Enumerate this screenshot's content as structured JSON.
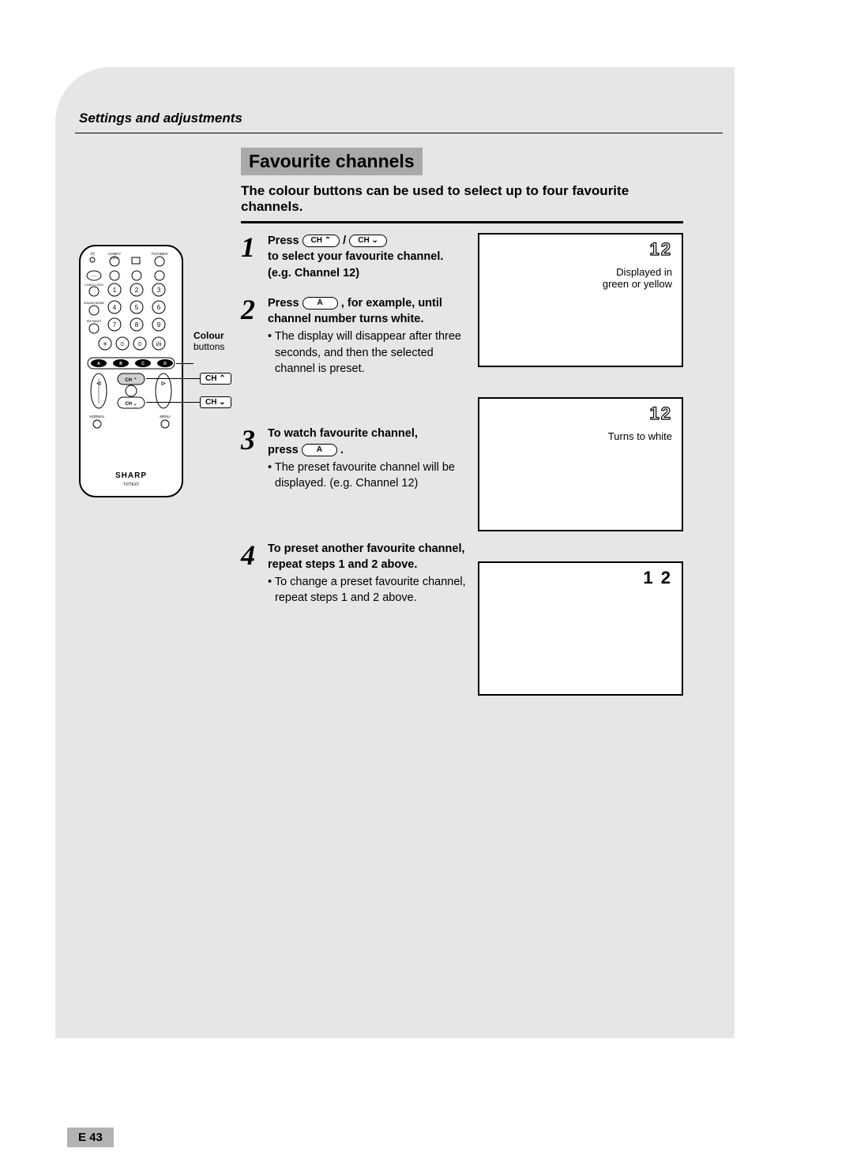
{
  "section_header": "Settings and adjustments",
  "title": "Favourite channels",
  "intro": "The colour buttons can be used to select up to four favourite channels.",
  "buttons": {
    "ch_up": "CH ⌃",
    "ch_down": "CH ⌄",
    "a_button": "A"
  },
  "remote": {
    "colour_label_bold": "Colour",
    "colour_label": "buttons",
    "ch_up_callout": "CH ⌃",
    "ch_down_callout": "CH ⌄",
    "brand": "SHARP",
    "subbrand": "TV/TEXT",
    "top_labels": {
      "comfy": "COMFY",
      "view": "VIEW",
      "tvvideo": "TV/VIDEO"
    },
    "small_labels": {
      "childlock": "CHILD LOCK",
      "soundmode": "SOUND MODE",
      "fmradio": "FM RADIO",
      "normal": "NORMAL",
      "menu": "MENU"
    },
    "keypad": [
      "1",
      "2",
      "3",
      "4",
      "5",
      "6",
      "7",
      "8",
      "9",
      "0"
    ],
    "abcd": [
      "A",
      "B",
      "C",
      "D"
    ],
    "ch_labels": {
      "up": "CH",
      "down": "CH"
    }
  },
  "steps": [
    {
      "num": "1",
      "lines": [
        {
          "type": "bold-inline",
          "before": "Press ",
          "btn1": "ch_up",
          "mid": " / ",
          "btn2": "ch_down",
          "after": ""
        },
        {
          "type": "bold",
          "text": "to select your favourite channel. (e.g. Channel 12)"
        }
      ]
    },
    {
      "num": "2",
      "lines": [
        {
          "type": "bold-inline",
          "before": "Press ",
          "btn1": "a_button",
          "after": ", for example, until channel number turns white."
        },
        {
          "type": "bullet",
          "text": "The display will disappear after three seconds, and then the selected channel is preset."
        }
      ]
    },
    {
      "num": "3",
      "lines": [
        {
          "type": "bold",
          "text": "To watch favourite channel,"
        },
        {
          "type": "bold-inline",
          "before": "press ",
          "btn1": "a_button",
          "after": "."
        },
        {
          "type": "bullet",
          "text": "The preset favourite channel will be displayed. (e.g. Channel 12)"
        }
      ]
    },
    {
      "num": "4",
      "lines": [
        {
          "type": "bold",
          "text": "To preset another favourite channel, repeat steps 1 and 2 above."
        },
        {
          "type": "bullet",
          "text": "To change a preset favourite channel, repeat steps 1 and 2 above."
        }
      ]
    }
  ],
  "screens": [
    {
      "num": "12",
      "style": "outline",
      "caption": "Displayed in\ngreen or yellow"
    },
    {
      "num": "12",
      "style": "outline",
      "caption": "Turns to white"
    },
    {
      "num": "1 2",
      "style": "solid",
      "caption": ""
    }
  ],
  "page_number": "E 43"
}
